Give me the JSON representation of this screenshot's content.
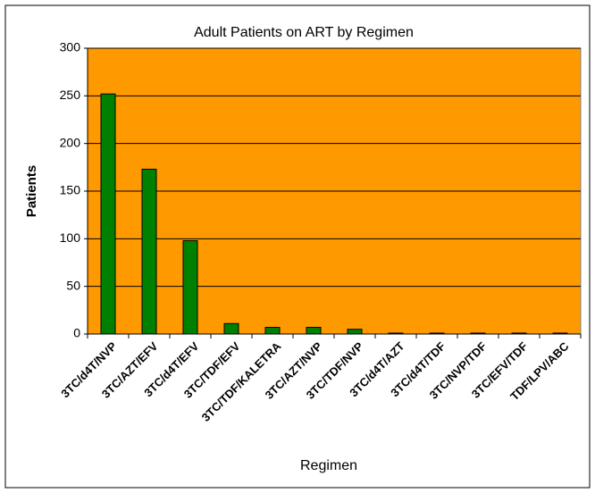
{
  "chart_data": {
    "type": "bar",
    "title": "Adult Patients on ART by Regimen",
    "x_label": "Regimen",
    "y_label": "Patients",
    "categories": [
      "3TC/d4T/NVP",
      "3TC/AZT/EFV",
      "3TC/d4T/EFV",
      "3TC/TDF/EFV",
      "3TC/TDF/KALETRA",
      "3TC/AZT/NVP",
      "3TC/TDF/NVP",
      "3TC/d4T/AZT",
      "3TC/d4T/TDF",
      "3TC/NVP/TDF",
      "3TC/EFV/TDF",
      "TDF/LPV/ABC"
    ],
    "values": [
      252,
      173,
      98,
      11,
      7,
      7,
      5,
      1,
      1,
      1,
      1,
      1
    ],
    "color": "#008000",
    "plot_background": "#ff9900",
    "ylim": [
      0,
      300
    ],
    "yticks": [
      0,
      50,
      100,
      150,
      200,
      250,
      300
    ],
    "grid": true
  }
}
